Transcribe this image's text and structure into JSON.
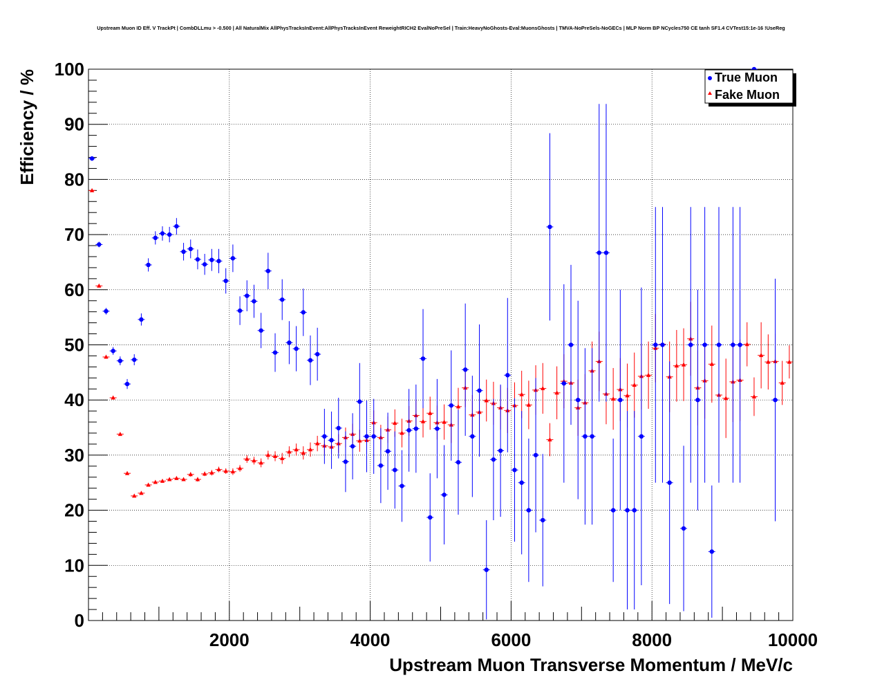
{
  "chart_data": {
    "type": "scatter",
    "title": "Upstream Muon ID Eff. V TrackPt | CombDLLmu > -0.500 | All NaturalMix AllPhysTracksInEvent:AllPhysTracksInEvent ReweightRICH2 EvalNoPreSel | Train:HeavyNoGhosts-Eval:MuonsGhosts | TMVA-NoPreSels-NoGECs | MLP Norm BP NCycles750 CE tanh SF1.4 CVTest15:1e-16 !UseReg",
    "xlabel": "Upstream Muon Transverse Momentum / MeV/c",
    "ylabel": "Efficiency / %",
    "xlim": [
      0,
      10000
    ],
    "ylim": [
      0,
      100
    ],
    "xticks": [
      2000,
      4000,
      6000,
      8000,
      10000
    ],
    "yticks": [
      0,
      10,
      20,
      30,
      40,
      50,
      60,
      70,
      80,
      90,
      100
    ],
    "grid": true,
    "legend_position": "top-right",
    "series": [
      {
        "name": "True Muon",
        "color": "#0000ff",
        "marker": "circle",
        "points": [
          {
            "x": 50,
            "y": 83.8,
            "err": 0.4
          },
          {
            "x": 150,
            "y": 68.2,
            "err": 0.5
          },
          {
            "x": 250,
            "y": 56.1,
            "err": 0.6
          },
          {
            "x": 350,
            "y": 48.9,
            "err": 0.7
          },
          {
            "x": 450,
            "y": 47.1,
            "err": 0.8
          },
          {
            "x": 550,
            "y": 42.9,
            "err": 0.9
          },
          {
            "x": 650,
            "y": 47.3,
            "err": 1.0
          },
          {
            "x": 750,
            "y": 54.6,
            "err": 1.1
          },
          {
            "x": 850,
            "y": 64.5,
            "err": 1.2
          },
          {
            "x": 950,
            "y": 69.4,
            "err": 1.2
          },
          {
            "x": 1050,
            "y": 70.2,
            "err": 1.3
          },
          {
            "x": 1150,
            "y": 70.0,
            "err": 1.4
          },
          {
            "x": 1250,
            "y": 71.5,
            "err": 1.5
          },
          {
            "x": 1350,
            "y": 66.9,
            "err": 1.6
          },
          {
            "x": 1450,
            "y": 67.4,
            "err": 1.7
          },
          {
            "x": 1550,
            "y": 65.5,
            "err": 1.8
          },
          {
            "x": 1650,
            "y": 64.6,
            "err": 1.9
          },
          {
            "x": 1750,
            "y": 65.4,
            "err": 2.0
          },
          {
            "x": 1850,
            "y": 65.2,
            "err": 2.2
          },
          {
            "x": 1950,
            "y": 61.6,
            "err": 2.3
          },
          {
            "x": 2050,
            "y": 65.7,
            "err": 2.5
          },
          {
            "x": 2150,
            "y": 56.2,
            "err": 2.6
          },
          {
            "x": 2250,
            "y": 58.9,
            "err": 2.8
          },
          {
            "x": 2350,
            "y": 57.9,
            "err": 3.0
          },
          {
            "x": 2450,
            "y": 52.6,
            "err": 3.2
          },
          {
            "x": 2550,
            "y": 63.4,
            "err": 3.3
          },
          {
            "x": 2650,
            "y": 48.6,
            "err": 3.5
          },
          {
            "x": 2750,
            "y": 58.2,
            "err": 3.7
          },
          {
            "x": 2850,
            "y": 50.4,
            "err": 3.9
          },
          {
            "x": 2950,
            "y": 49.3,
            "err": 4.1
          },
          {
            "x": 3050,
            "y": 55.9,
            "err": 4.3
          },
          {
            "x": 3150,
            "y": 47.2,
            "err": 4.5
          },
          {
            "x": 3250,
            "y": 48.3,
            "err": 4.8
          },
          {
            "x": 3350,
            "y": 33.4,
            "err": 5.0
          },
          {
            "x": 3450,
            "y": 32.7,
            "err": 5.2
          },
          {
            "x": 3550,
            "y": 34.9,
            "err": 5.5
          },
          {
            "x": 3650,
            "y": 28.8,
            "err": 5.5
          },
          {
            "x": 3750,
            "y": 31.6,
            "err": 6.0
          },
          {
            "x": 3850,
            "y": 39.7,
            "err": 7.0
          },
          {
            "x": 3950,
            "y": 33.4,
            "err": 6.5
          },
          {
            "x": 4050,
            "y": 33.4,
            "err": 6.8
          },
          {
            "x": 4150,
            "y": 28.1,
            "err": 6.8
          },
          {
            "x": 4250,
            "y": 30.7,
            "err": 7.0
          },
          {
            "x": 4350,
            "y": 27.3,
            "err": 7.0
          },
          {
            "x": 4450,
            "y": 24.4,
            "err": 6.5
          },
          {
            "x": 4550,
            "y": 34.5,
            "err": 7.5
          },
          {
            "x": 4650,
            "y": 34.8,
            "err": 8.0
          },
          {
            "x": 4750,
            "y": 47.5,
            "err": 9.0
          },
          {
            "x": 4850,
            "y": 18.7,
            "err": 8.0
          },
          {
            "x": 4950,
            "y": 34.8,
            "err": 9.0
          },
          {
            "x": 5050,
            "y": 22.8,
            "err": 9.0
          },
          {
            "x": 5150,
            "y": 39.0,
            "err": 10.0
          },
          {
            "x": 5250,
            "y": 28.7,
            "err": 9.5
          },
          {
            "x": 5350,
            "y": 45.5,
            "err": 12.0
          },
          {
            "x": 5450,
            "y": 33.4,
            "err": 11.0
          },
          {
            "x": 5550,
            "y": 41.7,
            "err": 12.0
          },
          {
            "x": 5650,
            "y": 9.2,
            "err": 9.0
          },
          {
            "x": 5750,
            "y": 29.2,
            "err": 11.0
          },
          {
            "x": 5850,
            "y": 30.8,
            "err": 12.0
          },
          {
            "x": 5950,
            "y": 44.5,
            "err": 14.0
          },
          {
            "x": 6050,
            "y": 27.3,
            "err": 13.0
          },
          {
            "x": 6150,
            "y": 25.0,
            "err": 13.0
          },
          {
            "x": 6250,
            "y": 20.0,
            "err": 13.0
          },
          {
            "x": 6350,
            "y": 30.0,
            "err": 14.0
          },
          {
            "x": 6450,
            "y": 18.2,
            "err": 12.0
          },
          {
            "x": 6550,
            "y": 71.4,
            "err": 17.0
          },
          {
            "x": 6750,
            "y": 43.0,
            "err": 18.0
          },
          {
            "x": 6850,
            "y": 50.0,
            "err": 14.5
          },
          {
            "x": 6950,
            "y": 40.0,
            "err": 18.0
          },
          {
            "x": 7050,
            "y": 33.4,
            "err": 16.0
          },
          {
            "x": 7150,
            "y": 33.4,
            "err": 16.0
          },
          {
            "x": 7250,
            "y": 66.7,
            "err": 27.0
          },
          {
            "x": 7350,
            "y": 66.7,
            "err": 27.0
          },
          {
            "x": 7450,
            "y": 20.0,
            "err": 13.0
          },
          {
            "x": 7550,
            "y": 40.0,
            "err": 20.0
          },
          {
            "x": 7650,
            "y": 20.0,
            "err": 18.0
          },
          {
            "x": 7750,
            "y": 20.0,
            "err": 18.0
          },
          {
            "x": 7850,
            "y": 33.4,
            "err": 27.0
          },
          {
            "x": 8050,
            "y": 50.0,
            "err": 25.0
          },
          {
            "x": 8150,
            "y": 50.0,
            "err": 25.0
          },
          {
            "x": 8250,
            "y": 25.0,
            "err": 22.0
          },
          {
            "x": 8450,
            "y": 16.7,
            "err": 15.0
          },
          {
            "x": 8550,
            "y": 50.0,
            "err": 25.0
          },
          {
            "x": 8650,
            "y": 40.0,
            "err": 20.0
          },
          {
            "x": 8750,
            "y": 50.0,
            "err": 25.0
          },
          {
            "x": 8850,
            "y": 12.5,
            "err": 12.0
          },
          {
            "x": 8950,
            "y": 50.0,
            "err": 25.0
          },
          {
            "x": 9150,
            "y": 50.0,
            "err": 25.0
          },
          {
            "x": 9250,
            "y": 50.0,
            "err": 25.0
          },
          {
            "x": 9450,
            "y": 100.0,
            "err": 0.0
          },
          {
            "x": 9750,
            "y": 40.0,
            "err": 22.0
          }
        ]
      },
      {
        "name": "Fake Muon",
        "color": "#ff0000",
        "marker": "triangle",
        "points": [
          {
            "x": 50,
            "y": 78.0,
            "err": 0.2
          },
          {
            "x": 150,
            "y": 60.7,
            "err": 0.2
          },
          {
            "x": 250,
            "y": 47.8,
            "err": 0.2
          },
          {
            "x": 350,
            "y": 40.4,
            "err": 0.2
          },
          {
            "x": 450,
            "y": 33.8,
            "err": 0.2
          },
          {
            "x": 550,
            "y": 26.7,
            "err": 0.2
          },
          {
            "x": 650,
            "y": 22.6,
            "err": 0.2
          },
          {
            "x": 750,
            "y": 23.1,
            "err": 0.2
          },
          {
            "x": 850,
            "y": 24.6,
            "err": 0.2
          },
          {
            "x": 950,
            "y": 25.1,
            "err": 0.3
          },
          {
            "x": 1050,
            "y": 25.3,
            "err": 0.3
          },
          {
            "x": 1150,
            "y": 25.6,
            "err": 0.3
          },
          {
            "x": 1250,
            "y": 25.8,
            "err": 0.3
          },
          {
            "x": 1350,
            "y": 25.6,
            "err": 0.3
          },
          {
            "x": 1450,
            "y": 26.5,
            "err": 0.4
          },
          {
            "x": 1550,
            "y": 25.6,
            "err": 0.4
          },
          {
            "x": 1650,
            "y": 26.6,
            "err": 0.4
          },
          {
            "x": 1750,
            "y": 26.8,
            "err": 0.5
          },
          {
            "x": 1850,
            "y": 27.4,
            "err": 0.5
          },
          {
            "x": 1950,
            "y": 27.1,
            "err": 0.5
          },
          {
            "x": 2050,
            "y": 27.0,
            "err": 0.6
          },
          {
            "x": 2150,
            "y": 27.6,
            "err": 0.6
          },
          {
            "x": 2250,
            "y": 29.3,
            "err": 0.7
          },
          {
            "x": 2350,
            "y": 29.0,
            "err": 0.7
          },
          {
            "x": 2450,
            "y": 28.6,
            "err": 0.8
          },
          {
            "x": 2550,
            "y": 30.0,
            "err": 0.8
          },
          {
            "x": 2650,
            "y": 29.8,
            "err": 0.9
          },
          {
            "x": 2750,
            "y": 29.4,
            "err": 1.0
          },
          {
            "x": 2850,
            "y": 30.6,
            "err": 1.0
          },
          {
            "x": 2950,
            "y": 31.0,
            "err": 1.1
          },
          {
            "x": 3050,
            "y": 30.4,
            "err": 1.2
          },
          {
            "x": 3150,
            "y": 31.0,
            "err": 1.3
          },
          {
            "x": 3250,
            "y": 32.1,
            "err": 1.4
          },
          {
            "x": 3350,
            "y": 31.7,
            "err": 1.5
          },
          {
            "x": 3450,
            "y": 31.5,
            "err": 1.6
          },
          {
            "x": 3550,
            "y": 32.1,
            "err": 1.7
          },
          {
            "x": 3650,
            "y": 33.2,
            "err": 1.8
          },
          {
            "x": 3750,
            "y": 33.8,
            "err": 1.9
          },
          {
            "x": 3850,
            "y": 32.6,
            "err": 2.0
          },
          {
            "x": 3950,
            "y": 32.7,
            "err": 2.1
          },
          {
            "x": 4050,
            "y": 35.9,
            "err": 2.2
          },
          {
            "x": 4150,
            "y": 33.2,
            "err": 2.3
          },
          {
            "x": 4250,
            "y": 34.6,
            "err": 2.4
          },
          {
            "x": 4350,
            "y": 35.8,
            "err": 2.5
          },
          {
            "x": 4450,
            "y": 34.0,
            "err": 2.6
          },
          {
            "x": 4550,
            "y": 36.2,
            "err": 2.7
          },
          {
            "x": 4650,
            "y": 37.2,
            "err": 2.8
          },
          {
            "x": 4750,
            "y": 36.1,
            "err": 2.9
          },
          {
            "x": 4850,
            "y": 37.6,
            "err": 3.0
          },
          {
            "x": 4950,
            "y": 35.9,
            "err": 3.1
          },
          {
            "x": 5050,
            "y": 36.0,
            "err": 3.2
          },
          {
            "x": 5150,
            "y": 35.5,
            "err": 3.3
          },
          {
            "x": 5250,
            "y": 38.8,
            "err": 3.4
          },
          {
            "x": 5350,
            "y": 42.2,
            "err": 3.5
          },
          {
            "x": 5450,
            "y": 37.3,
            "err": 3.6
          },
          {
            "x": 5550,
            "y": 37.8,
            "err": 3.7
          },
          {
            "x": 5650,
            "y": 39.9,
            "err": 3.8
          },
          {
            "x": 5750,
            "y": 39.4,
            "err": 3.9
          },
          {
            "x": 5850,
            "y": 38.6,
            "err": 4.0
          },
          {
            "x": 5950,
            "y": 38.1,
            "err": 4.1
          },
          {
            "x": 6050,
            "y": 39.0,
            "err": 4.2
          },
          {
            "x": 6150,
            "y": 41.0,
            "err": 4.3
          },
          {
            "x": 6250,
            "y": 39.1,
            "err": 4.4
          },
          {
            "x": 6350,
            "y": 41.8,
            "err": 4.5
          },
          {
            "x": 6450,
            "y": 42.1,
            "err": 4.6
          },
          {
            "x": 6550,
            "y": 32.8,
            "err": 3.0
          },
          {
            "x": 6650,
            "y": 41.3,
            "err": 4.8
          },
          {
            "x": 6750,
            "y": 43.4,
            "err": 4.9
          },
          {
            "x": 6850,
            "y": 43.1,
            "err": 5.0
          },
          {
            "x": 6950,
            "y": 38.6,
            "err": 5.1
          },
          {
            "x": 7050,
            "y": 39.5,
            "err": 5.2
          },
          {
            "x": 7150,
            "y": 45.3,
            "err": 5.3
          },
          {
            "x": 7250,
            "y": 47.0,
            "err": 5.4
          },
          {
            "x": 7350,
            "y": 41.1,
            "err": 5.5
          },
          {
            "x": 7450,
            "y": 40.2,
            "err": 5.6
          },
          {
            "x": 7550,
            "y": 41.9,
            "err": 5.7
          },
          {
            "x": 7650,
            "y": 40.8,
            "err": 5.8
          },
          {
            "x": 7750,
            "y": 42.7,
            "err": 5.9
          },
          {
            "x": 7850,
            "y": 44.3,
            "err": 6.0
          },
          {
            "x": 7950,
            "y": 44.5,
            "err": 6.1
          },
          {
            "x": 8050,
            "y": 49.4,
            "err": 6.2
          },
          {
            "x": 8150,
            "y": 50.1,
            "err": 6.3
          },
          {
            "x": 8250,
            "y": 44.2,
            "err": 6.4
          },
          {
            "x": 8350,
            "y": 46.2,
            "err": 6.5
          },
          {
            "x": 8450,
            "y": 46.4,
            "err": 6.6
          },
          {
            "x": 8550,
            "y": 51.1,
            "err": 6.7
          },
          {
            "x": 8650,
            "y": 42.2,
            "err": 6.8
          },
          {
            "x": 8750,
            "y": 43.5,
            "err": 6.9
          },
          {
            "x": 8850,
            "y": 46.5,
            "err": 7.0
          },
          {
            "x": 8950,
            "y": 40.9,
            "err": 7.1
          },
          {
            "x": 9050,
            "y": 40.3,
            "err": 7.2
          },
          {
            "x": 9150,
            "y": 43.3,
            "err": 7.3
          },
          {
            "x": 9250,
            "y": 43.6,
            "err": 7.4
          },
          {
            "x": 9350,
            "y": 50.1,
            "err": 4.0
          },
          {
            "x": 9450,
            "y": 40.6,
            "err": 3.5
          },
          {
            "x": 9550,
            "y": 48.1,
            "err": 6.0
          },
          {
            "x": 9650,
            "y": 46.9,
            "err": 5.0
          },
          {
            "x": 9750,
            "y": 47.0,
            "err": 5.0
          },
          {
            "x": 9850,
            "y": 43.1,
            "err": 4.0
          },
          {
            "x": 9950,
            "y": 46.9,
            "err": 3.0
          }
        ]
      }
    ]
  }
}
